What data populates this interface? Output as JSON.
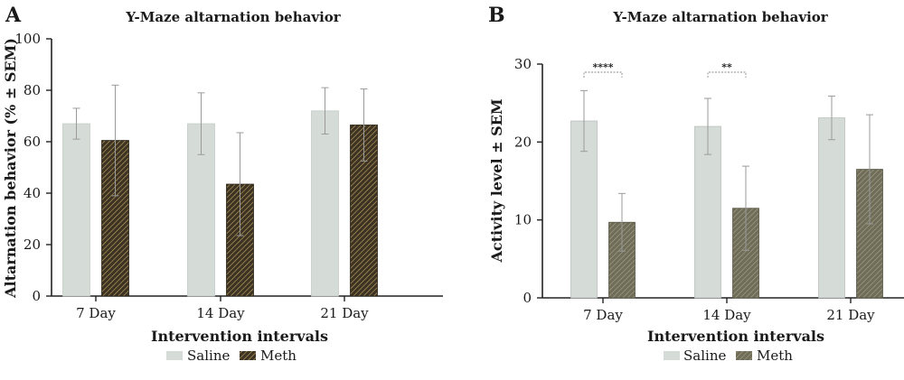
{
  "chart_data": [
    {
      "type": "bar",
      "panel_label": "A",
      "title": "Y-Maze altarnation behavior",
      "xlabel": "Intervention intervals",
      "ylabel": "Altarnation behavior (% ± SEM)",
      "categories": [
        "7 Day",
        "14 Day",
        "21 Day"
      ],
      "ylim": [
        0,
        100
      ],
      "yticks": [
        0,
        20,
        40,
        60,
        80,
        100
      ],
      "error_bars": true,
      "series": [
        {
          "name": "Saline",
          "color": "#d5dcd8",
          "pattern": "solid",
          "values": [
            67,
            67,
            72
          ],
          "err": [
            6,
            12,
            9
          ]
        },
        {
          "name": "Meth",
          "color": "#4a3f2c",
          "pattern": "hatch-dense",
          "values": [
            60.5,
            43.5,
            66.5
          ],
          "err": [
            21.5,
            20,
            14
          ]
        }
      ],
      "significance": [],
      "legend_position": "bottom"
    },
    {
      "type": "bar",
      "panel_label": "B",
      "title": "Y-Maze altarnation behavior",
      "xlabel": "Intervention intervals",
      "ylabel": "Activity level ± SEM",
      "categories": [
        "7 Day",
        "14 Day",
        "21 Day"
      ],
      "ylim": [
        0,
        30
      ],
      "yticks": [
        0,
        10,
        20,
        30
      ],
      "error_bars": true,
      "series": [
        {
          "name": "Saline",
          "color": "#d5dcd8",
          "pattern": "solid",
          "values": [
            22.7,
            22,
            23.1
          ],
          "err": [
            3.9,
            3.6,
            2.8
          ]
        },
        {
          "name": "Meth",
          "color": "#7d7a66",
          "pattern": "hatch-light",
          "values": [
            9.7,
            11.5,
            16.5
          ],
          "err": [
            3.7,
            5.4,
            7
          ]
        }
      ],
      "significance": [
        {
          "category": "7 Day",
          "label": "****"
        },
        {
          "category": "14 Day",
          "label": "**"
        }
      ],
      "legend_position": "bottom"
    }
  ]
}
